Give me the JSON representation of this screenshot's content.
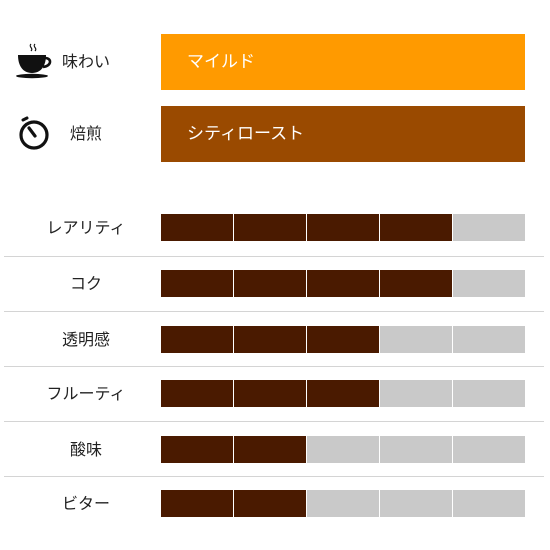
{
  "colors": {
    "taste_bar": "#ff9a00",
    "roast_bar": "#9a4a00",
    "filled": "#4a1a00",
    "empty": "#c9c9c9"
  },
  "taste": {
    "icon": "coffee-cup-icon",
    "label": "味わい",
    "value": "マイルド"
  },
  "roast": {
    "icon": "timer-icon",
    "label": "焙煎",
    "value": "シティロースト"
  },
  "ratings": [
    {
      "label": "レアリティ",
      "level": 4,
      "max": 5
    },
    {
      "label": "コク",
      "level": 4,
      "max": 5
    },
    {
      "label": "透明感",
      "level": 3,
      "max": 5
    },
    {
      "label": "フルーティ",
      "level": 3,
      "max": 5
    },
    {
      "label": "酸味",
      "level": 2,
      "max": 5
    },
    {
      "label": "ビター",
      "level": 2,
      "max": 5
    }
  ]
}
